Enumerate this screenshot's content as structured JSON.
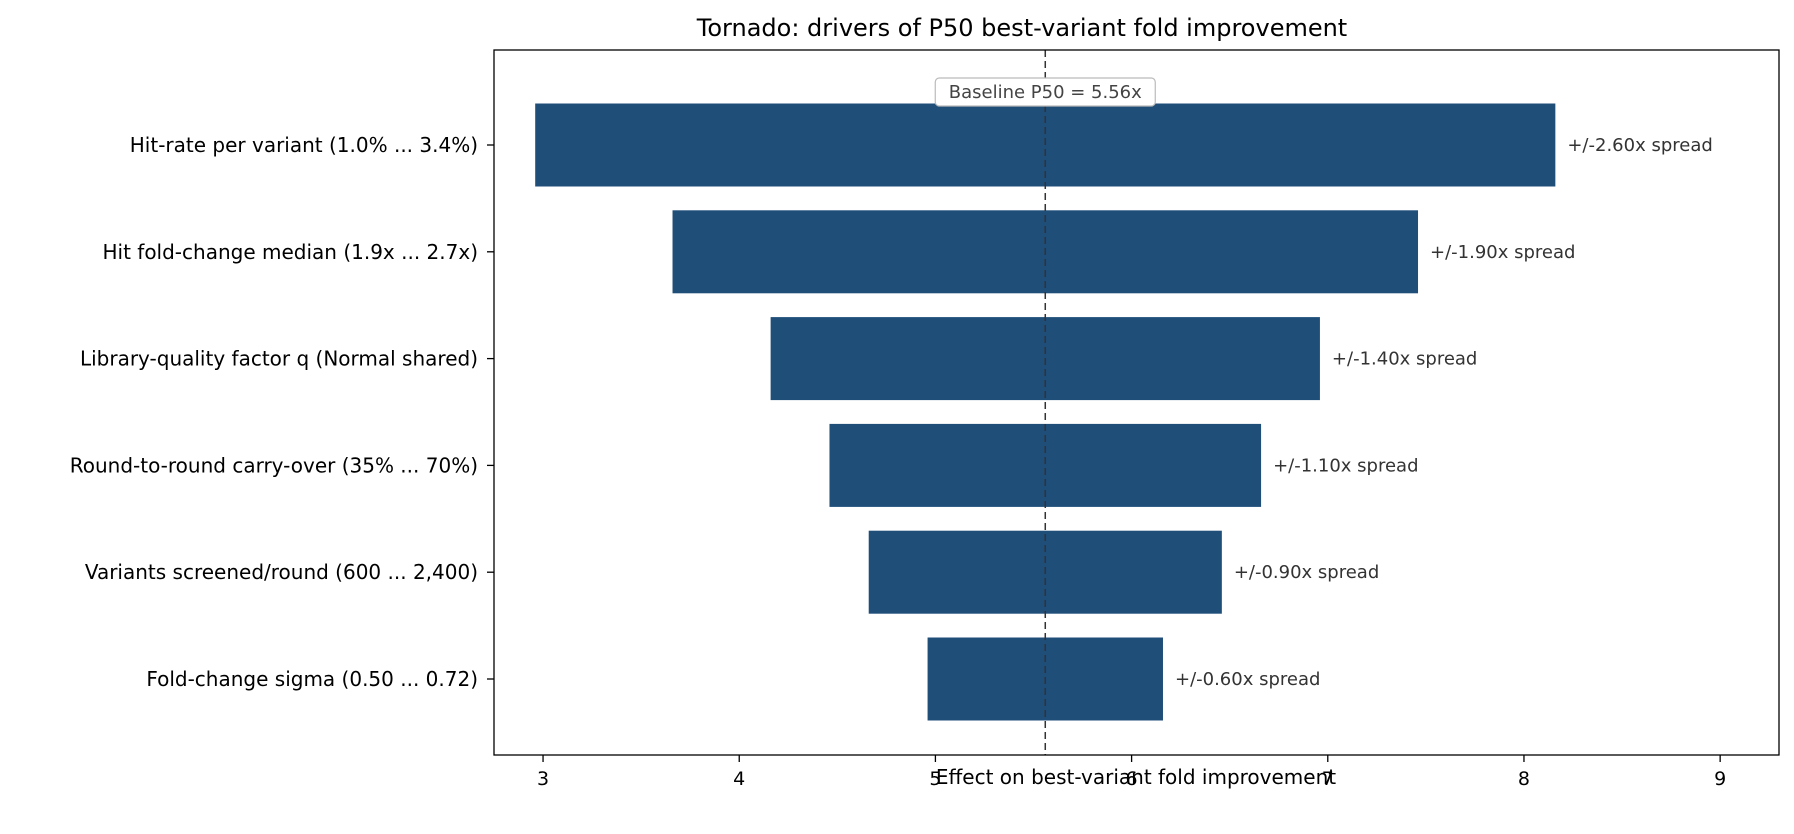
{
  "chart_data": {
    "type": "bar",
    "orientation": "horizontal",
    "variant": "tornado",
    "title": "Tornado: drivers of P50 best-variant fold improvement",
    "xlabel": "Effect on best-variant fold improvement",
    "ylabel": "",
    "xlim": [
      2.75,
      9.3
    ],
    "xticks": [
      3,
      4,
      5,
      6,
      7,
      8,
      9
    ],
    "grid": false,
    "bar_color": "#1f4e79",
    "baseline": {
      "value": 5.56,
      "label": "Baseline P50 = 5.56x"
    },
    "categories": [
      "Hit-rate per variant  (1.0% ... 3.4%)",
      "Hit fold-change median  (1.9x ... 2.7x)",
      "Library-quality factor q  (Normal shared)",
      "Round-to-round carry-over  (35% ... 70%)",
      "Variants screened/round  (600 ... 2,400)",
      "Fold-change sigma  (0.50 ... 0.72)"
    ],
    "low": [
      2.96,
      3.66,
      4.16,
      4.46,
      4.66,
      4.96
    ],
    "high": [
      8.16,
      7.46,
      6.96,
      6.66,
      6.46,
      6.16
    ],
    "spread_labels": [
      "+/-2.60x spread",
      "+/-1.90x spread",
      "+/-1.40x spread",
      "+/-1.10x spread",
      "+/-0.90x spread",
      "+/-0.60x spread"
    ]
  }
}
